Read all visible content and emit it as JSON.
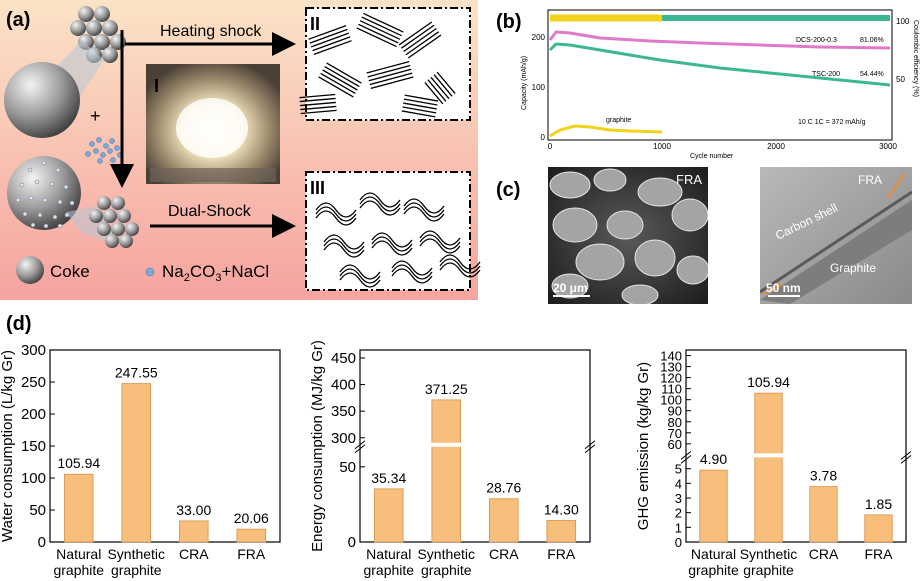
{
  "panel_a": {
    "label": "(a)",
    "heating_label": "Heating shock",
    "dual_label": "Dual-Shock",
    "roman_1": "I",
    "roman_2": "II",
    "roman_3": "III",
    "plus": "+",
    "legend_coke": "Coke",
    "legend_salt_parts": [
      "Na",
      "2",
      "CO",
      "3",
      "+NaCl"
    ]
  },
  "panel_b": {
    "label": "(b)",
    "y_left_label": "Capacity (mAh/g)",
    "y_right_label": "Coulombic efficiency (%)",
    "x_label": "Cycle number",
    "x_ticks": [
      "0",
      "1000",
      "2000",
      "3000"
    ],
    "y_left_ticks": [
      "0",
      "100",
      "200"
    ],
    "y_right_ticks": [
      "50",
      "100"
    ],
    "ann_dcs": "DCS-200-0.3",
    "ann_dcs_pct": "81.06%",
    "ann_tsc": "TSC-200",
    "ann_tsc_pct": "54.44%",
    "ann_graphite": "graphite",
    "ann_rate": "10 C   1C = 372 mAh/g",
    "colors": {
      "dcs": "#e07ac8",
      "tsc": "#3db792",
      "graphite": "#f2d21a"
    }
  },
  "panel_c": {
    "label": "(c)",
    "sem_tag": "FRA",
    "sem_scale": "20 μm",
    "tem_tag": "FRA",
    "tem_shell": "Carbon shell",
    "tem_core": "Graphite",
    "tem_scale": "50 nm"
  },
  "panel_d": {
    "label": "(d)"
  },
  "chart_data": [
    {
      "type": "bar",
      "ylabel": "Water consumption (L/kg Gr)",
      "categories": [
        "Natural\ngraphite",
        "Synthetic\ngraphite",
        "CRA",
        "FRA"
      ],
      "values": [
        105.94,
        247.55,
        33.0,
        20.06
      ],
      "value_labels": [
        "105.94",
        "247.55",
        "33.00",
        "20.06"
      ],
      "ylim": [
        0,
        300
      ],
      "yticks": [
        "0",
        "50",
        "100",
        "150",
        "200",
        "250",
        "300"
      ],
      "bar_color": "#f7be7c"
    },
    {
      "type": "bar",
      "ylabel": "Energy consumption (MJ/kg Gr)",
      "categories": [
        "Natural\ngraphite",
        "Synthetic\ngraphite",
        "CRA",
        "FRA"
      ],
      "values": [
        35.34,
        371.25,
        28.76,
        14.3
      ],
      "value_labels": [
        "35.34",
        "371.25",
        "28.76",
        "14.30"
      ],
      "axis_break": [
        60,
        300
      ],
      "yticks": [
        "0",
        "50",
        "300",
        "350",
        "400",
        "450"
      ],
      "bar_color": "#f7be7c"
    },
    {
      "type": "bar",
      "ylabel": "GHG emission (kg/kg Gr)",
      "categories": [
        "Natural\ngraphite",
        "Synthetic\ngraphite",
        "CRA",
        "FRA"
      ],
      "values": [
        4.9,
        105.94,
        3.78,
        1.85
      ],
      "value_labels": [
        "4.90",
        "105.94",
        "3.78",
        "1.85"
      ],
      "axis_break": [
        5.5,
        55
      ],
      "yticks": [
        "0",
        "1",
        "2",
        "3",
        "4",
        "5",
        "60",
        "70",
        "80",
        "90",
        "100",
        "110",
        "120",
        "130",
        "140"
      ],
      "bar_color": "#f7be7c"
    }
  ]
}
